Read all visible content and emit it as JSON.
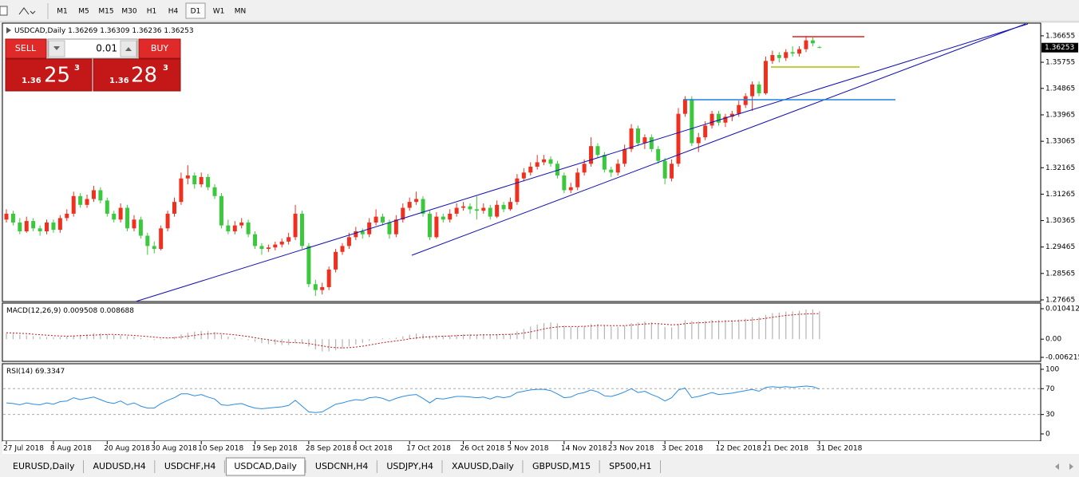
{
  "toolbar": {
    "timeframes": [
      "M1",
      "M5",
      "M15",
      "M30",
      "H1",
      "H4",
      "D1",
      "W1",
      "MN"
    ],
    "active_timeframe": 6
  },
  "trade_panel": {
    "sell": "SELL",
    "buy": "BUY",
    "volume": "0.01",
    "bid": {
      "prefix": "1.36",
      "pips": "25",
      "point": "3"
    },
    "ask": {
      "prefix": "1.36",
      "pips": "28",
      "point": "3"
    }
  },
  "chart_data": [
    {
      "type": "candlestick",
      "symbol": "USDCAD,Daily",
      "up_color": "#f0301e",
      "down_color": "#3cc83c",
      "candles": [
        [
          1.304,
          1.3075,
          1.303,
          1.306
        ],
        [
          1.306,
          1.307,
          1.302,
          1.303
        ],
        [
          1.303,
          1.3045,
          1.299,
          1.3
        ],
        [
          1.3,
          1.305,
          1.2995,
          1.3035
        ],
        [
          1.3035,
          1.3045,
          1.3,
          1.301
        ],
        [
          1.301,
          1.302,
          1.2985,
          1.3
        ],
        [
          1.3,
          1.304,
          1.299,
          1.303
        ],
        [
          1.303,
          1.304,
          1.2995,
          1.3005
        ],
        [
          1.3005,
          1.3055,
          1.2995,
          1.3045
        ],
        [
          1.3045,
          1.3075,
          1.3035,
          1.306
        ],
        [
          1.306,
          1.3135,
          1.305,
          1.312
        ],
        [
          1.312,
          1.313,
          1.308,
          1.309
        ],
        [
          1.309,
          1.3125,
          1.308,
          1.311
        ],
        [
          1.311,
          1.3155,
          1.31,
          1.314
        ],
        [
          1.314,
          1.315,
          1.3095,
          1.3105
        ],
        [
          1.3105,
          1.3115,
          1.305,
          1.306
        ],
        [
          1.306,
          1.307,
          1.303,
          1.304
        ],
        [
          1.304,
          1.3095,
          1.303,
          1.308
        ],
        [
          1.308,
          1.309,
          1.3,
          1.301
        ],
        [
          1.301,
          1.3055,
          1.3,
          1.304
        ],
        [
          1.304,
          1.305,
          1.2975,
          1.2985
        ],
        [
          1.2985,
          1.2995,
          1.292,
          1.295
        ],
        [
          1.295,
          1.2965,
          1.2925,
          1.294
        ],
        [
          1.294,
          1.302,
          1.2935,
          1.301
        ],
        [
          1.301,
          1.307,
          1.3,
          1.306
        ],
        [
          1.306,
          1.3115,
          1.305,
          1.31
        ],
        [
          1.31,
          1.32,
          1.309,
          1.318
        ],
        [
          1.318,
          1.3225,
          1.316,
          1.319
        ],
        [
          1.319,
          1.32,
          1.3145,
          1.316
        ],
        [
          1.316,
          1.32,
          1.315,
          1.3185
        ],
        [
          1.3185,
          1.3195,
          1.314,
          1.315
        ],
        [
          1.315,
          1.316,
          1.311,
          1.312
        ],
        [
          1.312,
          1.313,
          1.301,
          1.302
        ],
        [
          1.302,
          1.304,
          1.299,
          1.3
        ],
        [
          1.3,
          1.3035,
          1.299,
          1.302
        ],
        [
          1.302,
          1.3045,
          1.301,
          1.303
        ],
        [
          1.303,
          1.304,
          1.298,
          1.299
        ],
        [
          1.299,
          1.3,
          1.294,
          1.295
        ],
        [
          1.295,
          1.296,
          1.292,
          1.294
        ],
        [
          1.294,
          1.2955,
          1.293,
          1.2945
        ],
        [
          1.2945,
          1.2965,
          1.2935,
          1.2955
        ],
        [
          1.2955,
          1.2975,
          1.2945,
          1.2965
        ],
        [
          1.2965,
          1.2995,
          1.2955,
          1.298
        ],
        [
          1.298,
          1.309,
          1.297,
          1.306
        ],
        [
          1.306,
          1.307,
          1.294,
          1.295
        ],
        [
          1.295,
          1.296,
          1.281,
          1.282
        ],
        [
          1.282,
          1.2835,
          1.278,
          1.28
        ],
        [
          1.28,
          1.2825,
          1.2785,
          1.281
        ],
        [
          1.281,
          1.288,
          1.28,
          1.287
        ],
        [
          1.287,
          1.294,
          1.286,
          1.293
        ],
        [
          1.293,
          1.296,
          1.292,
          1.295
        ],
        [
          1.295,
          1.2995,
          1.294,
          1.298
        ],
        [
          1.298,
          1.3015,
          1.297,
          1.3
        ],
        [
          1.3,
          1.301,
          1.2975,
          1.299
        ],
        [
          1.299,
          1.3045,
          1.298,
          1.303
        ],
        [
          1.303,
          1.3075,
          1.302,
          1.305
        ],
        [
          1.305,
          1.306,
          1.302,
          1.303
        ],
        [
          1.303,
          1.304,
          1.2975,
          1.299
        ],
        [
          1.299,
          1.3055,
          1.298,
          1.304
        ],
        [
          1.304,
          1.3095,
          1.303,
          1.308
        ],
        [
          1.308,
          1.3115,
          1.307,
          1.31
        ],
        [
          1.31,
          1.3135,
          1.309,
          1.311
        ],
        [
          1.311,
          1.312,
          1.305,
          1.306
        ],
        [
          1.306,
          1.307,
          1.297,
          1.298
        ],
        [
          1.298,
          1.3065,
          1.2975,
          1.305
        ],
        [
          1.305,
          1.306,
          1.303,
          1.304
        ],
        [
          1.304,
          1.3075,
          1.303,
          1.306
        ],
        [
          1.306,
          1.3095,
          1.305,
          1.308
        ],
        [
          1.308,
          1.31,
          1.307,
          1.3085
        ],
        [
          1.3085,
          1.3095,
          1.306,
          1.3075
        ],
        [
          1.3075,
          1.312,
          1.304,
          1.307
        ],
        [
          1.307,
          1.3095,
          1.306,
          1.308
        ],
        [
          1.308,
          1.309,
          1.304,
          1.305
        ],
        [
          1.305,
          1.3105,
          1.3045,
          1.309
        ],
        [
          1.309,
          1.31,
          1.3065,
          1.3075
        ],
        [
          1.3075,
          1.3115,
          1.307,
          1.31
        ],
        [
          1.31,
          1.3195,
          1.309,
          1.318
        ],
        [
          1.318,
          1.3215,
          1.317,
          1.32
        ],
        [
          1.32,
          1.3235,
          1.319,
          1.322
        ],
        [
          1.322,
          1.326,
          1.321,
          1.3235
        ],
        [
          1.3235,
          1.326,
          1.3225,
          1.3245
        ],
        [
          1.3245,
          1.3255,
          1.322,
          1.323
        ],
        [
          1.323,
          1.324,
          1.318,
          1.319
        ],
        [
          1.319,
          1.32,
          1.313,
          1.314
        ],
        [
          1.314,
          1.3165,
          1.313,
          1.315
        ],
        [
          1.315,
          1.3215,
          1.314,
          1.32
        ],
        [
          1.32,
          1.3245,
          1.319,
          1.323
        ],
        [
          1.323,
          1.332,
          1.322,
          1.329
        ],
        [
          1.329,
          1.33,
          1.325,
          1.326
        ],
        [
          1.326,
          1.327,
          1.32,
          1.321
        ],
        [
          1.321,
          1.322,
          1.3185,
          1.32
        ],
        [
          1.32,
          1.3245,
          1.319,
          1.323
        ],
        [
          1.323,
          1.3295,
          1.322,
          1.328
        ],
        [
          1.328,
          1.3365,
          1.327,
          1.335
        ],
        [
          1.335,
          1.336,
          1.329,
          1.33
        ],
        [
          1.33,
          1.333,
          1.328,
          1.332
        ],
        [
          1.332,
          1.333,
          1.327,
          1.328
        ],
        [
          1.328,
          1.329,
          1.323,
          1.324
        ],
        [
          1.324,
          1.325,
          1.316,
          1.318
        ],
        [
          1.318,
          1.3245,
          1.317,
          1.323
        ],
        [
          1.323,
          1.342,
          1.322,
          1.34
        ],
        [
          1.34,
          1.346,
          1.339,
          1.345
        ],
        [
          1.345,
          1.346,
          1.329,
          1.33
        ],
        [
          1.33,
          1.3335,
          1.327,
          1.332
        ],
        [
          1.332,
          1.3375,
          1.331,
          1.336
        ],
        [
          1.336,
          1.341,
          1.335,
          1.34
        ],
        [
          1.34,
          1.341,
          1.336,
          1.337
        ],
        [
          1.337,
          1.34,
          1.3355,
          1.339
        ],
        [
          1.339,
          1.341,
          1.3375,
          1.34
        ],
        [
          1.34,
          1.3445,
          1.339,
          1.343
        ],
        [
          1.343,
          1.347,
          1.342,
          1.346
        ],
        [
          1.346,
          1.351,
          1.341,
          1.35
        ],
        [
          1.35,
          1.351,
          1.346,
          1.347
        ],
        [
          1.347,
          1.3595,
          1.3465,
          1.358
        ],
        [
          1.358,
          1.3615,
          1.357,
          1.36
        ],
        [
          1.36,
          1.361,
          1.3575,
          1.359
        ],
        [
          1.359,
          1.362,
          1.358,
          1.361
        ],
        [
          1.361,
          1.363,
          1.3595,
          1.3605
        ],
        [
          1.3605,
          1.363,
          1.3595,
          1.362
        ],
        [
          1.362,
          1.3665,
          1.361,
          1.365
        ],
        [
          1.365,
          1.366,
          1.363,
          1.364
        ],
        [
          1.36269,
          1.36309,
          1.36236,
          1.36253
        ]
      ],
      "ylim": [
        1.2761,
        1.3706
      ],
      "yticks": [
        1.36655,
        1.35755,
        1.34865,
        1.33965,
        1.33065,
        1.32165,
        1.31265,
        1.30365,
        1.29465,
        1.28565,
        1.27665
      ],
      "xticks": [
        {
          "value": 0,
          "label": "27 Jul 2018"
        },
        {
          "value": 7,
          "label": "8 Aug 2018"
        },
        {
          "value": 15,
          "label": "20 Aug 2018"
        },
        {
          "value": 22,
          "label": "30 Aug 2018"
        },
        {
          "value": 29,
          "label": "10 Sep 2018"
        },
        {
          "value": 37,
          "label": "19 Sep 2018"
        },
        {
          "value": 45,
          "label": "28 Sep 2018"
        },
        {
          "value": 52,
          "label": "8 Oct 2018"
        },
        {
          "value": 60,
          "label": "17 Oct 2018"
        },
        {
          "value": 68,
          "label": "26 Oct 2018"
        },
        {
          "value": 75,
          "label": "5 Nov 2018"
        },
        {
          "value": 83,
          "label": "14 Nov 2018"
        },
        {
          "value": 90,
          "label": "23 Nov 2018"
        },
        {
          "value": 98,
          "label": "3 Dec 2018"
        },
        {
          "value": 106,
          "label": "12 Dec 2018"
        },
        {
          "value": 113,
          "label": "21 Dec 2018"
        },
        {
          "value": 121,
          "label": "31 Dec 2018"
        }
      ]
    },
    {
      "type": "macd",
      "label": "MACD(12,26,9)",
      "histogram_color": "#b4b4b4",
      "signal_color": "#c81414",
      "values": [
        0.002,
        0.0018,
        0.0015,
        0.0013,
        0.001,
        0.0008,
        0.0007,
        0.0006,
        0.0007,
        0.0009,
        0.0013,
        0.0015,
        0.0017,
        0.002,
        0.002,
        0.0017,
        0.0014,
        0.0013,
        0.001,
        0.0008,
        0.0004,
        0.0,
        -0.0003,
        -0.0002,
        0.0002,
        0.0008,
        0.0016,
        0.0022,
        0.0026,
        0.0028,
        0.0027,
        0.0024,
        0.0016,
        0.0009,
        0.0005,
        0.0002,
        -0.0003,
        -0.0009,
        -0.0014,
        -0.0017,
        -0.0019,
        -0.002,
        -0.002,
        -0.0012,
        -0.0015,
        -0.0025,
        -0.0035,
        -0.0042,
        -0.0042,
        -0.0038,
        -0.0032,
        -0.0025,
        -0.0018,
        -0.0013,
        -0.0006,
        0.0,
        0.0003,
        0.0002,
        0.0005,
        0.001,
        0.0015,
        0.0019,
        0.0018,
        0.0011,
        0.0012,
        0.0012,
        0.0013,
        0.0015,
        0.0017,
        0.0017,
        0.0016,
        0.0017,
        0.0015,
        0.0017,
        0.0017,
        0.0019,
        0.0027,
        0.0035,
        0.0043,
        0.005,
        0.0055,
        0.0057,
        0.0054,
        0.0046,
        0.0041,
        0.0042,
        0.0045,
        0.0052,
        0.0052,
        0.0048,
        0.0043,
        0.0042,
        0.0046,
        0.0055,
        0.0057,
        0.006,
        0.0058,
        0.0052,
        0.0042,
        0.004,
        0.0052,
        0.0065,
        0.0062,
        0.0061,
        0.0062,
        0.0066,
        0.0065,
        0.0065,
        0.0065,
        0.0067,
        0.007,
        0.0075,
        0.0075,
        0.0083,
        0.0089,
        0.0091,
        0.0094,
        0.0095,
        0.0097,
        0.0101,
        0.0102,
        0.009508
      ],
      "signal": [
        0.0022,
        0.0021,
        0.002,
        0.0019,
        0.0017,
        0.0015,
        0.0014,
        0.0012,
        0.0011,
        0.001,
        0.0011,
        0.0012,
        0.0013,
        0.0014,
        0.0015,
        0.0016,
        0.0016,
        0.0015,
        0.0014,
        0.0013,
        0.0011,
        0.0009,
        0.0007,
        0.0005,
        0.0004,
        0.0005,
        0.0007,
        0.001,
        0.0013,
        0.0016,
        0.0018,
        0.002,
        0.0019,
        0.0017,
        0.0015,
        0.0012,
        0.0009,
        0.0005,
        0.0001,
        -0.0002,
        -0.0006,
        -0.0009,
        -0.0011,
        -0.0012,
        -0.0013,
        -0.0015,
        -0.0019,
        -0.0023,
        -0.0027,
        -0.0029,
        -0.003,
        -0.0029,
        -0.0027,
        -0.0024,
        -0.002,
        -0.0016,
        -0.0012,
        -0.0009,
        -0.0006,
        -0.0003,
        0.0001,
        0.0004,
        0.0007,
        0.0008,
        0.0009,
        0.001,
        0.0011,
        0.0012,
        0.0013,
        0.0014,
        0.0014,
        0.0015,
        0.0015,
        0.0015,
        0.0016,
        0.0016,
        0.0018,
        0.0021,
        0.0025,
        0.003,
        0.0035,
        0.0039,
        0.0042,
        0.0043,
        0.0043,
        0.0043,
        0.0044,
        0.0045,
        0.0047,
        0.0047,
        0.0046,
        0.0046,
        0.0046,
        0.0048,
        0.005,
        0.0052,
        0.0053,
        0.0053,
        0.0051,
        0.0049,
        0.005,
        0.0053,
        0.0055,
        0.0056,
        0.0057,
        0.0059,
        0.006,
        0.0061,
        0.0062,
        0.0063,
        0.0064,
        0.0066,
        0.0068,
        0.0071,
        0.0075,
        0.0078,
        0.0081,
        0.0083,
        0.0085,
        0.0086,
        0.0087,
        0.008688
      ],
      "ylim": [
        -0.00758,
        0.01232
      ],
      "yticks": [
        0.010412,
        {
          "value": 0,
          "label": "0.00"
        },
        -0.006215
      ]
    },
    {
      "type": "line",
      "label": "RSI(14)",
      "color": "#2a8ce0",
      "values": [
        48,
        47,
        45,
        48,
        46,
        45,
        48,
        46,
        50,
        51,
        56,
        53,
        55,
        57,
        53,
        49,
        47,
        51,
        45,
        48,
        43,
        40,
        40,
        47,
        52,
        56,
        62,
        62,
        59,
        61,
        57,
        54,
        45,
        44,
        46,
        47,
        43,
        40,
        39,
        40,
        41,
        42,
        44,
        52,
        43,
        34,
        33,
        34,
        40,
        46,
        48,
        51,
        53,
        52,
        56,
        57,
        55,
        51,
        55,
        58,
        60,
        61,
        55,
        48,
        55,
        54,
        56,
        58,
        58,
        57,
        56,
        57,
        54,
        58,
        56,
        58,
        64,
        66,
        68,
        69,
        69,
        67,
        62,
        56,
        57,
        62,
        64,
        68,
        65,
        59,
        58,
        61,
        65,
        70,
        64,
        66,
        61,
        57,
        51,
        56,
        68,
        71,
        56,
        58,
        61,
        64,
        61,
        62,
        63,
        65,
        67,
        69,
        66,
        72,
        73,
        72,
        73,
        72,
        73,
        74,
        73,
        69.3347
      ],
      "ylim": [
        -9.9,
        108.6
      ],
      "yticks": [
        100,
        70,
        30,
        0
      ],
      "levels": [
        70,
        30
      ]
    }
  ],
  "tabs": [
    "EURUSD,Daily",
    "AUDUSD,H4",
    "USDCHF,H4",
    "USDCAD,Daily",
    "USDCNH,H4",
    "USDJPY,H4",
    "XAUUSD,Daily",
    "GBPUSD,M15",
    "SP500,H1"
  ],
  "active_tab": 3
}
